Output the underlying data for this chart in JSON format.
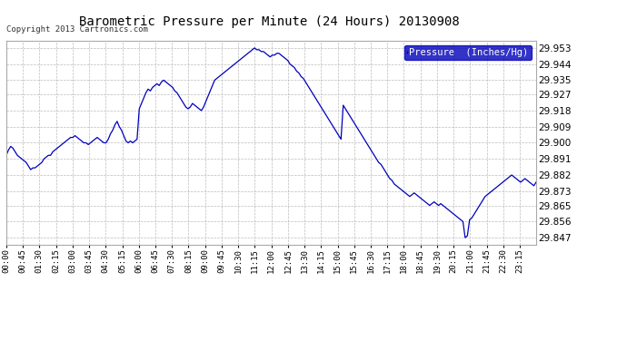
{
  "title": "Barometric Pressure per Minute (24 Hours) 20130908",
  "copyright": "Copyright 2013 Cartronics.com",
  "legend_label": "Pressure  (Inches/Hg)",
  "background_color": "#ffffff",
  "plot_bg_color": "#ffffff",
  "line_color": "#0000bb",
  "grid_color": "#bbbbbb",
  "yticks": [
    29.847,
    29.856,
    29.865,
    29.873,
    29.882,
    29.891,
    29.9,
    29.909,
    29.918,
    29.927,
    29.935,
    29.944,
    29.953
  ],
  "ylim": [
    29.843,
    29.957
  ],
  "xtick_labels": [
    "00:00",
    "00:45",
    "01:30",
    "02:15",
    "03:00",
    "03:45",
    "04:30",
    "05:15",
    "06:00",
    "06:45",
    "07:30",
    "08:15",
    "09:00",
    "09:45",
    "10:30",
    "11:15",
    "12:00",
    "12:45",
    "13:30",
    "14:15",
    "15:00",
    "15:45",
    "16:30",
    "17:15",
    "18:00",
    "18:45",
    "19:30",
    "20:15",
    "21:00",
    "21:45",
    "22:30",
    "23:15"
  ],
  "pressure_data": [
    29.893,
    29.896,
    29.898,
    29.897,
    29.895,
    29.893,
    29.892,
    29.891,
    29.89,
    29.889,
    29.887,
    29.885,
    29.886,
    29.886,
    29.887,
    29.888,
    29.889,
    29.891,
    29.892,
    29.893,
    29.893,
    29.895,
    29.896,
    29.897,
    29.898,
    29.899,
    29.9,
    29.901,
    29.902,
    29.903,
    29.903,
    29.904,
    29.903,
    29.902,
    29.901,
    29.9,
    29.9,
    29.899,
    29.9,
    29.901,
    29.902,
    29.903,
    29.902,
    29.901,
    29.9,
    29.9,
    29.902,
    29.905,
    29.907,
    29.91,
    29.912,
    29.909,
    29.907,
    29.904,
    29.901,
    29.9,
    29.901,
    29.9,
    29.901,
    29.902,
    29.919,
    29.922,
    29.925,
    29.928,
    29.93,
    29.929,
    29.931,
    29.932,
    29.933,
    29.932,
    29.934,
    29.935,
    29.934,
    29.933,
    29.932,
    29.931,
    29.929,
    29.928,
    29.926,
    29.924,
    29.922,
    29.92,
    29.919,
    29.92,
    29.922,
    29.921,
    29.92,
    29.919,
    29.918,
    29.92,
    29.923,
    29.926,
    29.929,
    29.932,
    29.935,
    29.936,
    29.937,
    29.938,
    29.939,
    29.94,
    29.941,
    29.942,
    29.943,
    29.944,
    29.945,
    29.946,
    29.947,
    29.948,
    29.949,
    29.95,
    29.951,
    29.952,
    29.953,
    29.952,
    29.952,
    29.951,
    29.951,
    29.95,
    29.949,
    29.948,
    29.949,
    29.949,
    29.95,
    29.95,
    29.949,
    29.948,
    29.947,
    29.946,
    29.944,
    29.943,
    29.942,
    29.94,
    29.939,
    29.937,
    29.936,
    29.934,
    29.932,
    29.93,
    29.928,
    29.926,
    29.924,
    29.922,
    29.92,
    29.918,
    29.916,
    29.914,
    29.912,
    29.91,
    29.908,
    29.906,
    29.904,
    29.902,
    29.921,
    29.919,
    29.917,
    29.915,
    29.913,
    29.911,
    29.909,
    29.907,
    29.905,
    29.903,
    29.901,
    29.899,
    29.897,
    29.895,
    29.893,
    29.891,
    29.889,
    29.888,
    29.886,
    29.884,
    29.882,
    29.88,
    29.879,
    29.877,
    29.876,
    29.875,
    29.874,
    29.873,
    29.872,
    29.871,
    29.87,
    29.871,
    29.872,
    29.871,
    29.87,
    29.869,
    29.868,
    29.867,
    29.866,
    29.865,
    29.866,
    29.867,
    29.866,
    29.865,
    29.866,
    29.865,
    29.864,
    29.863,
    29.862,
    29.861,
    29.86,
    29.859,
    29.858,
    29.857,
    29.856,
    29.847,
    29.848,
    29.857,
    29.858,
    29.86,
    29.862,
    29.864,
    29.866,
    29.868,
    29.87,
    29.871,
    29.872,
    29.873,
    29.874,
    29.875,
    29.876,
    29.877,
    29.878,
    29.879,
    29.88,
    29.881,
    29.882,
    29.881,
    29.88,
    29.879,
    29.878,
    29.879,
    29.88,
    29.879,
    29.878,
    29.877,
    29.876,
    29.878
  ]
}
